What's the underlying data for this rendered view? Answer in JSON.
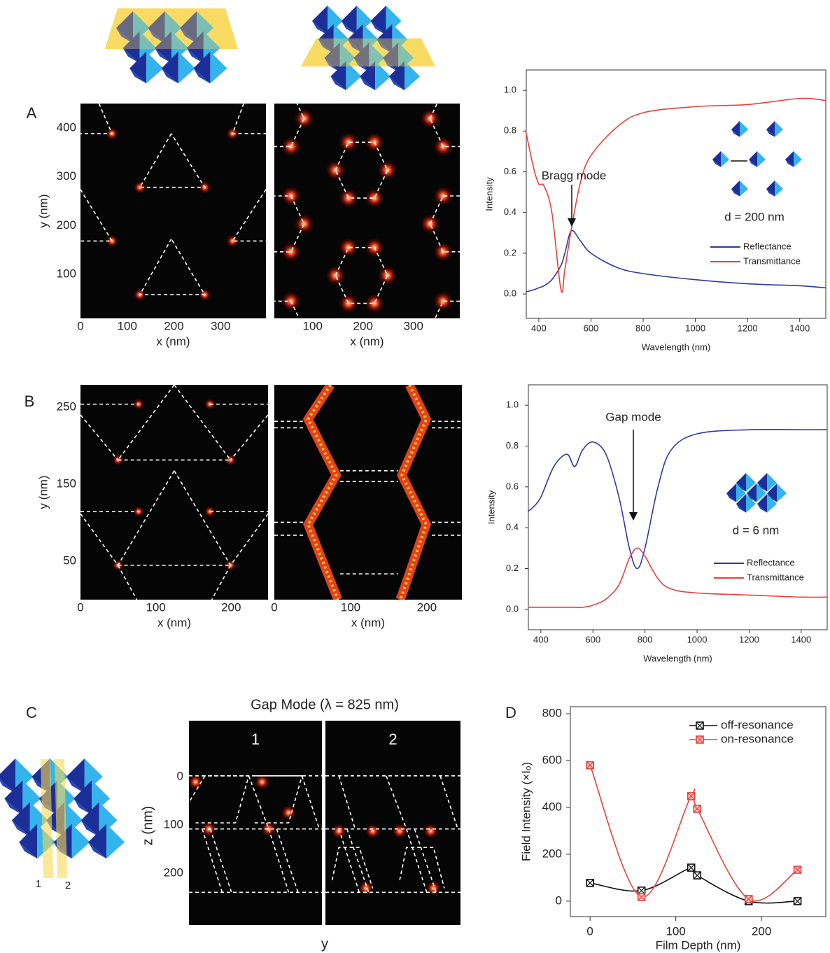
{
  "chart_data": [
    {
      "type": "field_map",
      "panel_label": "A",
      "xlabel": "x (nm)",
      "ylabel": "y (nm)",
      "xlim": [
        0,
        397
      ],
      "ylim": [
        10,
        450
      ],
      "xticks": [
        0,
        100,
        200,
        300
      ],
      "yticks": [
        100,
        200,
        300,
        400
      ]
    },
    {
      "type": "field_map",
      "xlabel": "x (nm)",
      "xlim": [
        24,
        392
      ],
      "xticks": [
        100,
        200,
        300
      ]
    },
    {
      "type": "line",
      "xlabel": "Wavelength (nm)",
      "ylabel": "Intensity",
      "xlim": [
        352,
        1500
      ],
      "ylim": [
        -0.12,
        1.1
      ],
      "xticks": [
        400,
        600,
        800,
        1000,
        1200,
        1400
      ],
      "yticks": [
        {
          "value": 0,
          "label": "0.0"
        },
        0.2,
        0.4,
        0.6,
        0.8,
        {
          "value": 1,
          "label": "1.0"
        }
      ],
      "x": [
        350,
        380,
        400,
        420,
        450,
        485,
        500,
        525,
        560,
        600,
        700,
        800,
        1000,
        1200,
        1400,
        1500
      ],
      "series": [
        {
          "name": "Reflectance",
          "color": "#2b3b9e",
          "values": [
            0.01,
            0.02,
            0.03,
            0.04,
            0.07,
            0.14,
            0.2,
            0.31,
            0.26,
            0.2,
            0.13,
            0.1,
            0.07,
            0.05,
            0.04,
            0.03
          ]
        },
        {
          "name": "Transmittance",
          "color": "#e8413b",
          "values": [
            0.8,
            0.62,
            0.54,
            0.53,
            0.4,
            0.02,
            0.12,
            0.32,
            0.55,
            0.68,
            0.82,
            0.89,
            0.92,
            0.93,
            0.96,
            0.95
          ]
        }
      ],
      "annotation": "Bragg mode",
      "inset_label": "d = 200 nm"
    },
    {
      "type": "field_map",
      "panel_label": "B",
      "xlabel": "x (nm)",
      "ylabel": "y (nm)",
      "xlim": [
        0,
        249
      ],
      "ylim": [
        0,
        279
      ],
      "xticks": [
        0,
        100,
        200
      ],
      "yticks": [
        50,
        150,
        250
      ]
    },
    {
      "type": "field_map",
      "xlabel": "x (nm)",
      "xlim": [
        0,
        246
      ],
      "xticks": [
        0,
        100,
        200
      ]
    },
    {
      "type": "line",
      "xlabel": "Wavelength (nm)",
      "ylabel": "Intensity",
      "xlim": [
        352,
        1500
      ],
      "ylim": [
        -0.1,
        1.1
      ],
      "xticks": [
        400,
        600,
        800,
        1000,
        1200,
        1400
      ],
      "yticks": [
        {
          "value": 0,
          "label": "0.0"
        },
        0.2,
        0.4,
        0.6,
        0.8,
        {
          "value": 1,
          "label": "1.0"
        }
      ],
      "x": [
        350,
        370,
        400,
        450,
        500,
        530,
        560,
        600,
        650,
        700,
        740,
        770,
        800,
        850,
        900,
        1000,
        1200,
        1400,
        1500
      ],
      "series": [
        {
          "name": "Reflectance",
          "color": "#2b3b9e",
          "values": [
            0.48,
            0.5,
            0.55,
            0.7,
            0.76,
            0.7,
            0.78,
            0.82,
            0.76,
            0.55,
            0.3,
            0.2,
            0.3,
            0.6,
            0.78,
            0.86,
            0.88,
            0.88,
            0.88
          ]
        },
        {
          "name": "Transmittance",
          "color": "#e8413b",
          "values": [
            0.01,
            0.01,
            0.01,
            0.01,
            0.01,
            0.01,
            0.01,
            0.02,
            0.05,
            0.12,
            0.25,
            0.3,
            0.26,
            0.15,
            0.1,
            0.08,
            0.07,
            0.06,
            0.06
          ]
        }
      ],
      "annotation": "Gap mode",
      "inset_label": "d = 6 nm"
    },
    {
      "type": "field_map_pair",
      "panel_label": "C",
      "title": "Gap Mode (λ = 825 nm)",
      "map_labels": [
        "1",
        "2"
      ],
      "xlabel": "y",
      "ylabel": "z (nm)",
      "ylim": [
        307,
        -116
      ],
      "yticks": [
        0,
        100,
        200
      ]
    },
    {
      "type": "scatter",
      "panel_label": "D",
      "xlabel": "Film Depth (nm)",
      "ylabel": "Field Intensity (×Iₒ)",
      "xlim": [
        -23,
        275
      ],
      "ylim": [
        -66,
        830
      ],
      "xticks": [
        0,
        100,
        200
      ],
      "yticks": [
        0,
        200,
        400,
        600,
        800
      ],
      "x": [
        0,
        60,
        118,
        125,
        185,
        242
      ],
      "series": [
        {
          "name": "off-resonance",
          "color": "#111111",
          "values": [
            78,
            45,
            143,
            110,
            0,
            0
          ]
        },
        {
          "name": "on-resonance",
          "color": "#e8413b",
          "values": [
            580,
            18,
            448,
            394,
            9,
            134
          ]
        }
      ],
      "legend": "upper right"
    }
  ],
  "diagram": {
    "slice_labels": [
      "1",
      "2"
    ]
  }
}
